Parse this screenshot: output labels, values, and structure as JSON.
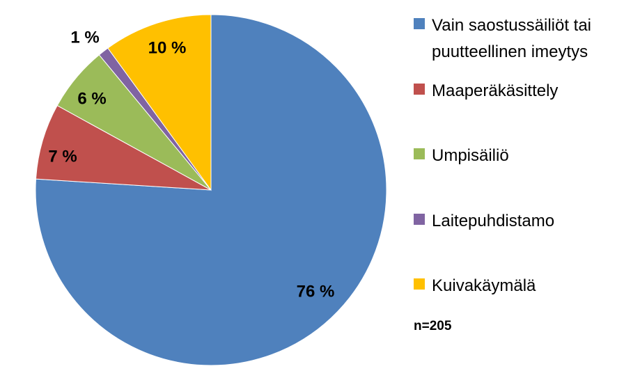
{
  "chart_data": {
    "type": "pie",
    "categories": [
      "Vain saostussäiliöt tai puutteellinen imeytys",
      "Maaperäkäsittely",
      "Umpisäiliö",
      "Laitepuhdistamo",
      "Kuivakäymälä"
    ],
    "values": [
      76,
      7,
      6,
      1,
      10
    ],
    "value_labels": [
      "76 %",
      "7 %",
      "6 %",
      "1 %",
      "10 %"
    ],
    "colors": [
      "#4f81bd",
      "#c0504d",
      "#9bbb59",
      "#8064a2",
      "#ffc000"
    ],
    "annotation": "n=205",
    "legend": "right"
  }
}
